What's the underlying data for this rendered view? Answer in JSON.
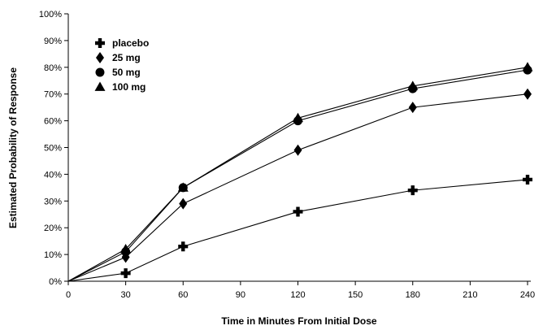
{
  "chart_data": {
    "type": "line",
    "title": "",
    "xlabel": "Time in Minutes From Initial Dose",
    "ylabel": "Estimated Probability of Response",
    "x": [
      0,
      30,
      60,
      120,
      180,
      240
    ],
    "xticks": [
      0,
      30,
      60,
      90,
      120,
      150,
      180,
      210,
      240
    ],
    "yticks": [
      0,
      10,
      20,
      30,
      40,
      50,
      60,
      70,
      80,
      90,
      100
    ],
    "ytick_suffix": "%",
    "xlim": [
      0,
      240
    ],
    "ylim": [
      0,
      100
    ],
    "grid": false,
    "legend_position": "top-left",
    "series": [
      {
        "name": "placebo",
        "marker": "plus",
        "values": [
          0,
          3,
          13,
          26,
          34,
          38
        ]
      },
      {
        "name": "25 mg",
        "marker": "diamond",
        "values": [
          0,
          9,
          29,
          49,
          65,
          70
        ]
      },
      {
        "name": "50 mg",
        "marker": "circle",
        "values": [
          0,
          11,
          35,
          60,
          72,
          79
        ]
      },
      {
        "name": "100 mg",
        "marker": "triangle",
        "values": [
          0,
          12,
          35,
          61,
          73,
          80
        ]
      }
    ],
    "line_color": "#000000"
  }
}
